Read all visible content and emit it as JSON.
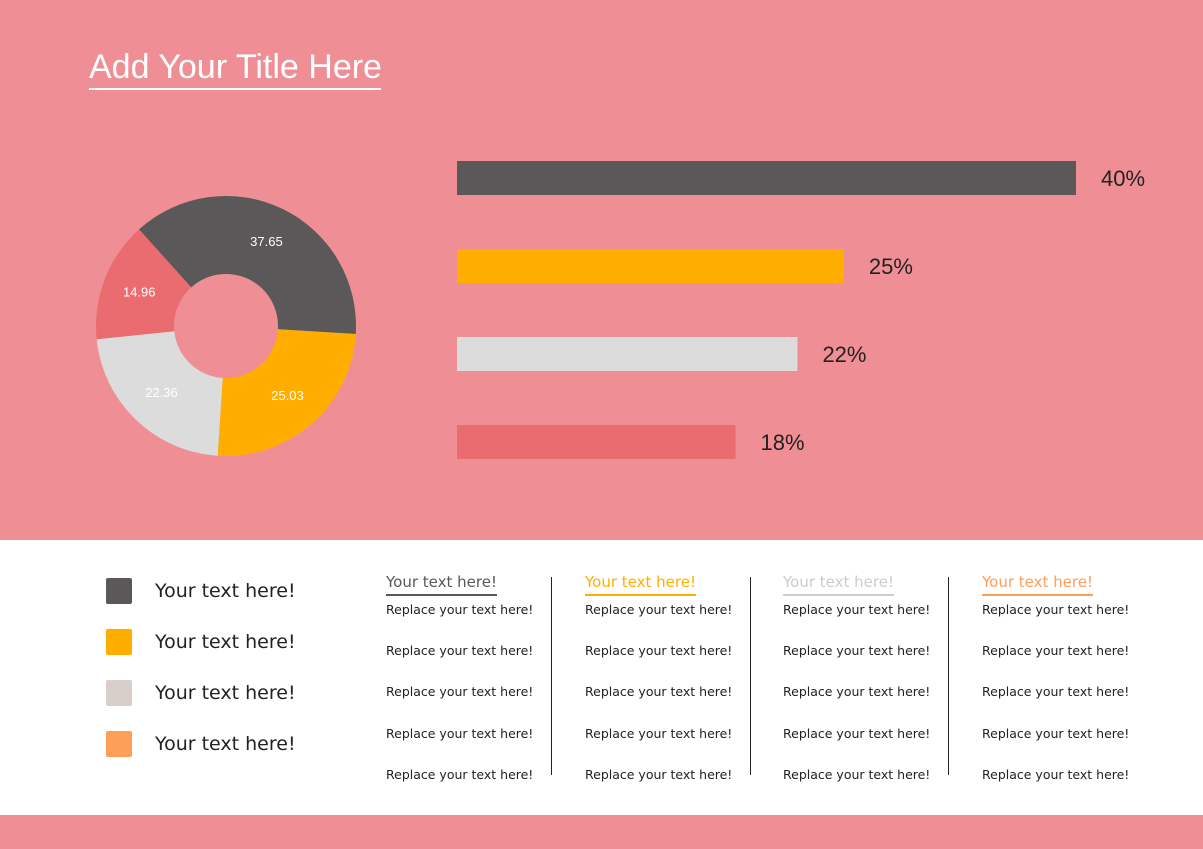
{
  "title": "Add Your Title Here",
  "colors": {
    "background": "#F08E96",
    "dark_gray": "#5A5859",
    "yellow": "#FFAE00",
    "light_gray": "#DCDCDC",
    "salmon": "#EA6C71",
    "orange": "#FE9F59",
    "legend_light": "#D8CFCA"
  },
  "chart_data": [
    {
      "type": "pie",
      "variant": "donut",
      "values": [
        37.65,
        25.03,
        22.36,
        14.96
      ],
      "colors": [
        "#5A5859",
        "#FFAE00",
        "#DCDCDC",
        "#EA6C71"
      ],
      "data_labels": [
        "37.65",
        "25.03",
        "22.36",
        "14.96"
      ]
    },
    {
      "type": "bar",
      "orientation": "horizontal",
      "values": [
        40,
        25,
        22,
        18
      ],
      "labels": [
        "40%",
        "25%",
        "22%",
        "18%"
      ],
      "colors": [
        "#5A5859",
        "#FFAE00",
        "#DCDCDC",
        "#EA6C71"
      ],
      "xlim": [
        0,
        40
      ]
    }
  ],
  "legend": [
    {
      "label": "Your text here!",
      "color": "#5A5859"
    },
    {
      "label": "Your text here!",
      "color": "#FFAE00"
    },
    {
      "label": "Your text here!",
      "color": "#D8CFCA"
    },
    {
      "label": "Your text here!",
      "color": "#FE9F59"
    }
  ],
  "columns": [
    {
      "heading": "Your text here!",
      "color": "#5A5859",
      "lines": [
        "Replace your text here!",
        "Replace your text here!",
        "Replace your text here!",
        "Replace your text here!",
        "Replace your text here!"
      ]
    },
    {
      "heading": "Your text here!",
      "color": "#FFAE00",
      "lines": [
        "Replace your text here!",
        "Replace your text here!",
        "Replace your text here!",
        "Replace your text here!",
        "Replace your text here!"
      ]
    },
    {
      "heading": "Your text here!",
      "color": "#D0CACA",
      "lines": [
        "Replace your text here!",
        "Replace your text here!",
        "Replace your text here!",
        "Replace your text here!",
        "Replace your text here!"
      ]
    },
    {
      "heading": "Your text here!",
      "color": "#FE9F59",
      "lines": [
        "Replace your text here!",
        "Replace your text here!",
        "Replace your text here!",
        "Replace your text here!",
        "Replace your text here!"
      ]
    }
  ]
}
